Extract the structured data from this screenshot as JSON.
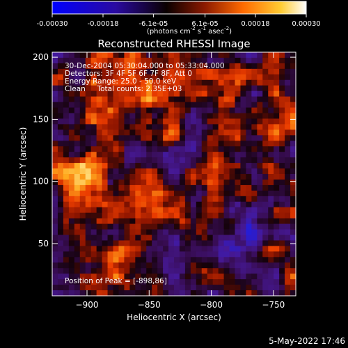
{
  "colorbar": {
    "tick_labels": [
      "-0.00030",
      "-0.00018",
      "-6.1e-05",
      "6.1e-05",
      "0.00018",
      "0.00030"
    ],
    "ticks": [
      -0.0003,
      -0.00018,
      -6.1e-05,
      6.1e-05,
      0.00018,
      0.0003
    ],
    "range": [
      -0.0003,
      0.0003
    ],
    "unit_main": "(photons cm",
    "unit_exp1": "-2",
    "unit_mid": " s",
    "unit_exp2": "-1",
    "unit_end": " asec",
    "unit_exp3": "-2",
    "unit_close": ")",
    "colors": [
      "#0000ff",
      "#000000",
      "#8b1a00",
      "#ff6a00",
      "#ffcc33",
      "#ffffff"
    ]
  },
  "chart_data": {
    "type": "heatmap",
    "title": "Reconstructed RHESSI Image",
    "xlabel": "Heliocentric X (arcsec)",
    "ylabel": "Heliocentric Y (arcsec)",
    "xlim": [
      -928,
      -732
    ],
    "ylim": [
      8,
      204
    ],
    "x_ticks": [
      -900,
      -850,
      -800,
      -750
    ],
    "y_ticks": [
      50,
      100,
      150,
      200
    ],
    "x_tick_labels": [
      "−900",
      "−850",
      "−800",
      "−750"
    ],
    "y_tick_labels": [
      "50",
      "100",
      "150",
      "200"
    ],
    "annotations": [
      "30-Dec-2004 05:30:04.000 to 05:33:04.000",
      "Detectors: 3F 4F 5F 6F 7F 8F, Att 0",
      "Energy Range: 25.0 - 50.0 keV",
      "Clean     Total counts: 2.35E+03"
    ],
    "peak_label": "Position of Peak = [-898,86]",
    "peak": [
      -898,
      86
    ]
  },
  "footer": {
    "timestamp": "5-May-2022 17:46"
  }
}
